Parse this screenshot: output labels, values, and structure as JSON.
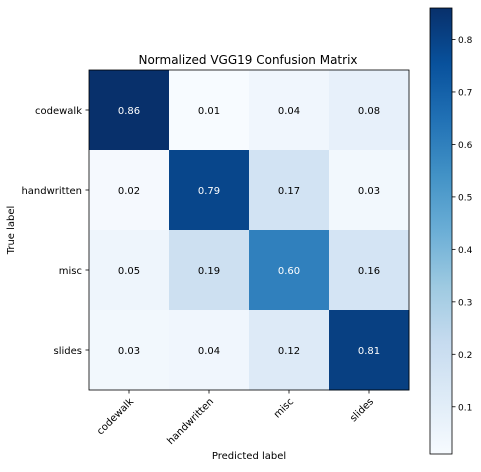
{
  "chart_data": {
    "type": "heatmap",
    "title": "Normalized VGG19 Confusion Matrix",
    "xlabel": "Predicted label",
    "ylabel": "True label",
    "x_categories": [
      "codewalk",
      "handwritten",
      "misc",
      "slides"
    ],
    "y_categories": [
      "codewalk",
      "handwritten",
      "misc",
      "slides"
    ],
    "values": [
      [
        0.86,
        0.01,
        0.04,
        0.08
      ],
      [
        0.02,
        0.79,
        0.17,
        0.03
      ],
      [
        0.05,
        0.19,
        0.6,
        0.16
      ],
      [
        0.03,
        0.04,
        0.12,
        0.81
      ]
    ],
    "value_labels": [
      [
        "0.86",
        "0.01",
        "0.04",
        "0.08"
      ],
      [
        "0.02",
        "0.79",
        "0.17",
        "0.03"
      ],
      [
        "0.05",
        "0.19",
        "0.60",
        "0.16"
      ],
      [
        "0.03",
        "0.04",
        "0.12",
        "0.81"
      ]
    ],
    "colormap": "Blues",
    "colorbar": {
      "range": [
        0.01,
        0.86
      ],
      "ticks": [
        0.1,
        0.2,
        0.3,
        0.4,
        0.5,
        0.6,
        0.7,
        0.8
      ],
      "tick_labels": [
        "0.1",
        "0.2",
        "0.3",
        "0.4",
        "0.5",
        "0.6",
        "0.7",
        "0.8"
      ]
    },
    "grid": false,
    "x_tick_rotation": 45,
    "text_color_light": "#ffffff",
    "text_color_dark": "#000000"
  }
}
